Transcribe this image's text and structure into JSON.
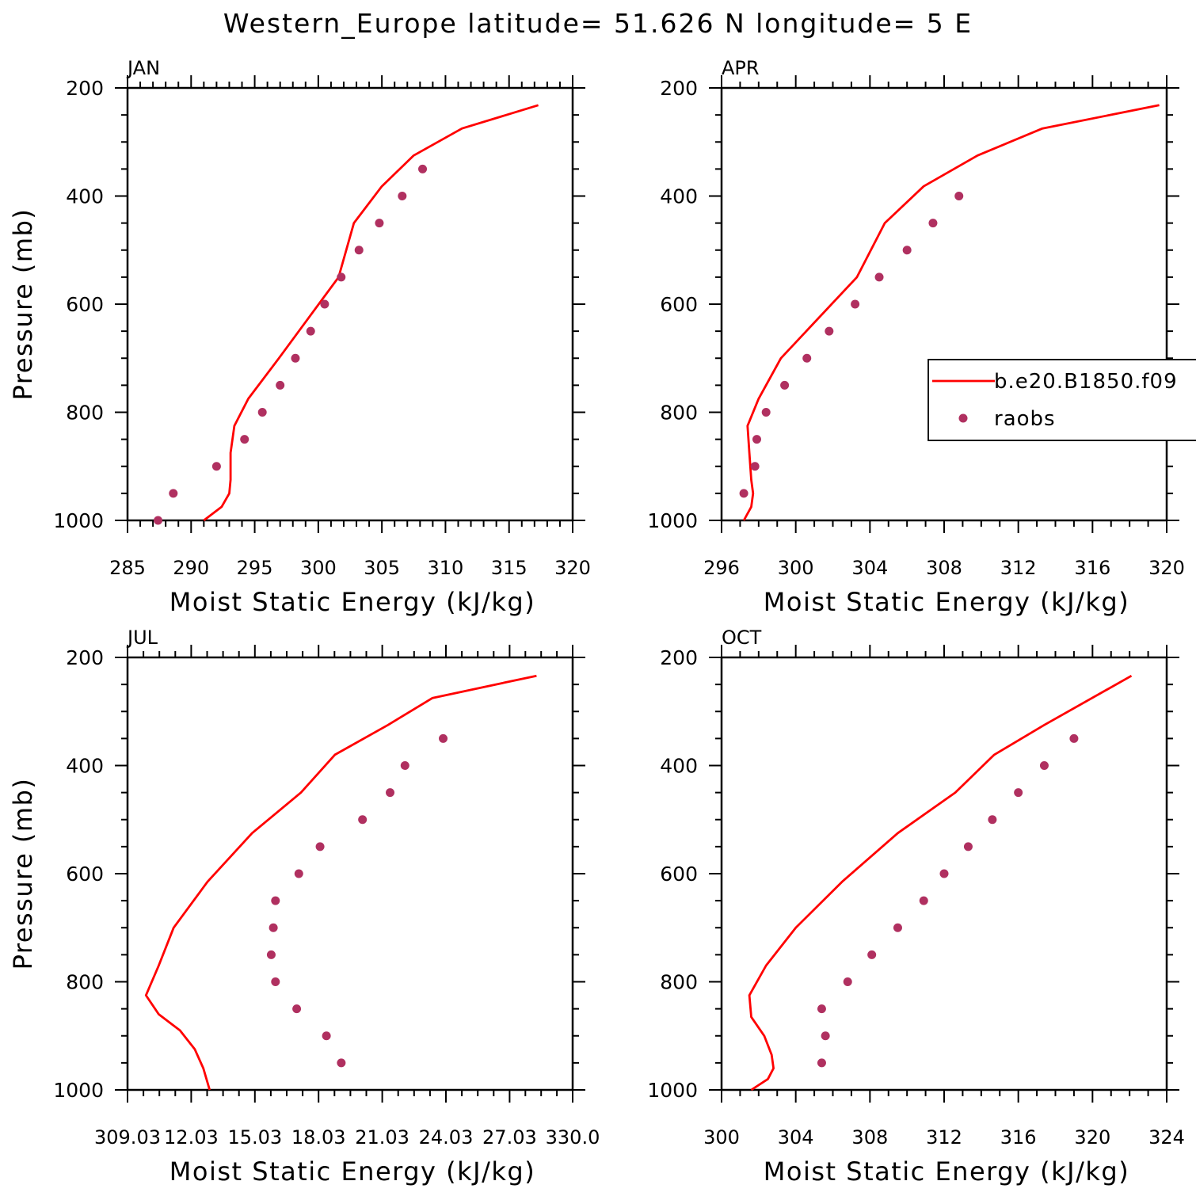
{
  "title": "Western_Europe  latitude= 51.626 N longitude= 5 E",
  "legend": {
    "entries": [
      {
        "label": "b.e20.B1850.f09",
        "kind": "line",
        "color": "#ff0000"
      },
      {
        "label": "raobs",
        "kind": "marker",
        "color": "#b03060"
      }
    ]
  },
  "colors": {
    "model": "#ff0000",
    "obs": "#b03060"
  },
  "chart_data": [
    {
      "type": "line",
      "title": "JAN",
      "xlabel": "Moist Static Energy (kJ/kg)",
      "ylabel": "Pressure (mb)",
      "xlim": [
        285,
        320
      ],
      "ylim": [
        1000,
        200
      ],
      "xticks": [
        "285",
        "290",
        "295",
        "300",
        "305",
        "310",
        "315",
        "320"
      ],
      "xtick_values": [
        285,
        290,
        295,
        300,
        305,
        310,
        315,
        320
      ],
      "yticks": [
        "200",
        "400",
        "600",
        "800",
        "1000"
      ],
      "ytick_values": [
        200,
        400,
        600,
        800,
        1000
      ],
      "series": [
        {
          "name": "b.e20.B1850.f09",
          "kind": "line",
          "x": [
            291.0,
            292.4,
            293.0,
            293.1,
            293.1,
            293.4,
            294.5,
            296.9,
            301.6,
            302.8,
            305.0,
            307.5,
            311.3,
            317.3
          ],
          "y": [
            1000,
            975,
            950,
            925,
            875,
            825,
            775,
            700,
            550,
            450,
            382,
            325,
            275,
            232
          ]
        },
        {
          "name": "raobs",
          "kind": "marker",
          "x": [
            287.4,
            288.6,
            292.0,
            294.2,
            295.6,
            297.0,
            298.2,
            299.4,
            300.5,
            301.8,
            303.2,
            304.8,
            306.6,
            308.2
          ],
          "y": [
            1000,
            950,
            900,
            850,
            800,
            750,
            700,
            650,
            600,
            550,
            500,
            450,
            400,
            350
          ]
        }
      ]
    },
    {
      "type": "line",
      "title": "APR",
      "xlabel": "Moist Static Energy (kJ/kg)",
      "ylabel": "",
      "xlim": [
        296,
        320
      ],
      "ylim": [
        1000,
        200
      ],
      "xticks": [
        "296",
        "300",
        "304",
        "308",
        "312",
        "316",
        "320"
      ],
      "xtick_values": [
        296,
        300,
        304,
        308,
        312,
        316,
        320
      ],
      "yticks": [
        "200",
        "400",
        "600",
        "800",
        "1000"
      ],
      "ytick_values": [
        200,
        400,
        600,
        800,
        1000
      ],
      "series": [
        {
          "name": "b.e20.B1850.f09",
          "kind": "line",
          "x": [
            297.2,
            297.6,
            297.7,
            297.6,
            297.5,
            297.4,
            298.0,
            299.2,
            303.3,
            304.8,
            306.9,
            309.8,
            313.3,
            319.6
          ],
          "y": [
            1000,
            975,
            950,
            925,
            875,
            825,
            775,
            700,
            550,
            450,
            382,
            325,
            275,
            232
          ]
        },
        {
          "name": "raobs",
          "kind": "marker",
          "x": [
            297.2,
            297.8,
            297.9,
            298.4,
            299.4,
            300.6,
            301.8,
            303.2,
            304.5,
            306.0,
            307.4,
            308.8
          ],
          "y": [
            950,
            900,
            850,
            800,
            750,
            700,
            650,
            600,
            550,
            500,
            450,
            400
          ]
        }
      ]
    },
    {
      "type": "line",
      "title": "JUL",
      "xlabel": "Moist Static Energy (kJ/kg)",
      "ylabel": "Pressure (mb)",
      "xlim": [
        309.03,
        330.0
      ],
      "ylim": [
        1000,
        200
      ],
      "xticks": [
        "309.03",
        "12.03",
        "15.03",
        "18.03",
        "21.03",
        "24.03",
        "27.03",
        "330.0"
      ],
      "xtick_values": [
        309.03,
        312.03,
        315.03,
        318.03,
        321.03,
        324.03,
        327.03,
        330.0
      ],
      "yticks": [
        "200",
        "400",
        "600",
        "800",
        "1000"
      ],
      "ytick_values": [
        200,
        400,
        600,
        800,
        1000
      ],
      "series": [
        {
          "name": "b.e20.B1850.f09",
          "kind": "line",
          "x": [
            312.9,
            312.6,
            312.2,
            311.5,
            310.5,
            309.9,
            310.5,
            311.2,
            312.8,
            314.9,
            317.2,
            318.8,
            321.3,
            323.4,
            328.3
          ],
          "y": [
            1000,
            960,
            925,
            890,
            860,
            825,
            770,
            700,
            615,
            525,
            450,
            380,
            325,
            275,
            234
          ]
        },
        {
          "name": "raobs",
          "kind": "marker",
          "x": [
            319.1,
            318.4,
            317.0,
            316.0,
            315.8,
            315.9,
            316.0,
            317.1,
            318.1,
            320.1,
            321.4,
            322.1,
            323.9
          ],
          "y": [
            950,
            900,
            850,
            800,
            750,
            700,
            650,
            600,
            550,
            500,
            450,
            400,
            350
          ]
        }
      ]
    },
    {
      "type": "line",
      "title": "OCT",
      "xlabel": "Moist Static Energy (kJ/kg)",
      "ylabel": "",
      "xlim": [
        300,
        324
      ],
      "ylim": [
        1000,
        200
      ],
      "xticks": [
        "300",
        "304",
        "308",
        "312",
        "316",
        "320",
        "324"
      ],
      "xtick_values": [
        300,
        304,
        308,
        312,
        316,
        320,
        324
      ],
      "yticks": [
        "200",
        "400",
        "600",
        "800",
        "1000"
      ],
      "ytick_values": [
        200,
        400,
        600,
        800,
        1000
      ],
      "series": [
        {
          "name": "b.e20.B1850.f09",
          "kind": "line",
          "x": [
            301.6,
            302.5,
            302.8,
            302.7,
            302.3,
            301.6,
            301.5,
            302.4,
            304.0,
            306.5,
            309.5,
            312.6,
            314.7,
            317.4,
            322.1
          ],
          "y": [
            1000,
            980,
            960,
            935,
            900,
            865,
            825,
            770,
            700,
            615,
            525,
            450,
            380,
            325,
            234
          ]
        },
        {
          "name": "raobs",
          "kind": "marker",
          "x": [
            305.4,
            305.6,
            305.4,
            306.8,
            308.1,
            309.5,
            310.9,
            312.0,
            313.3,
            314.6,
            316.0,
            317.4,
            319.0
          ],
          "y": [
            950,
            900,
            850,
            800,
            750,
            700,
            650,
            600,
            550,
            500,
            450,
            400,
            350
          ]
        }
      ]
    }
  ]
}
